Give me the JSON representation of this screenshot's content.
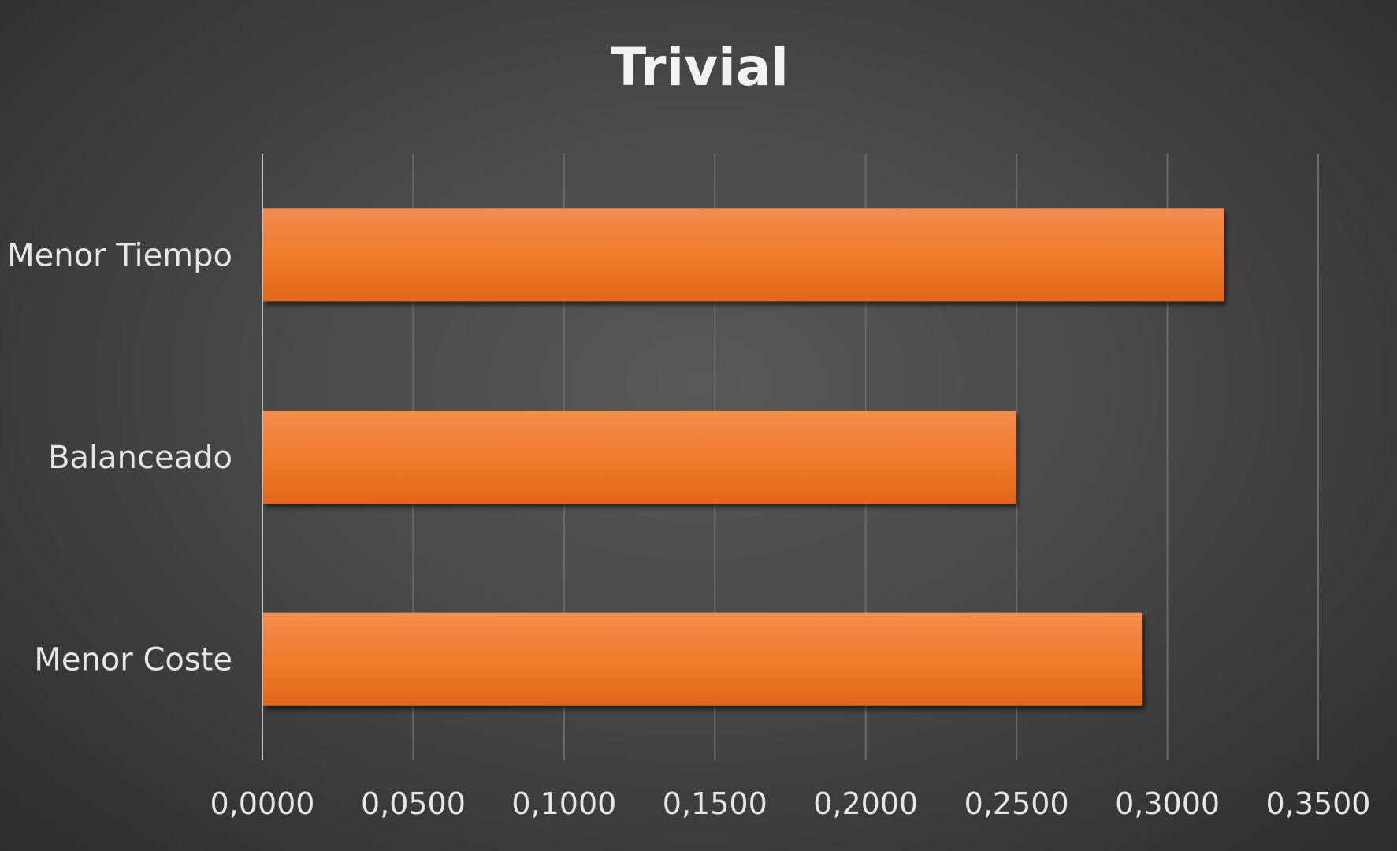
{
  "chart_data": {
    "type": "bar",
    "orientation": "horizontal",
    "title": "Trivial",
    "categories": [
      "Menor Tiempo",
      "Balanceado",
      "Menor Coste"
    ],
    "values": [
      0.3185,
      0.2495,
      0.2915
    ],
    "xlabel": "",
    "ylabel": "",
    "xlim": [
      0,
      0.35
    ],
    "ticks": [
      0,
      0.05,
      0.1,
      0.15,
      0.2,
      0.25,
      0.3,
      0.35
    ],
    "tick_labels": [
      "0,0000",
      "0,0500",
      "0,1000",
      "0,1500",
      "0,2000",
      "0,2500",
      "0,3000",
      "0,3500"
    ],
    "grid": true,
    "legend": "none",
    "bar_color": "#ED7D31"
  }
}
